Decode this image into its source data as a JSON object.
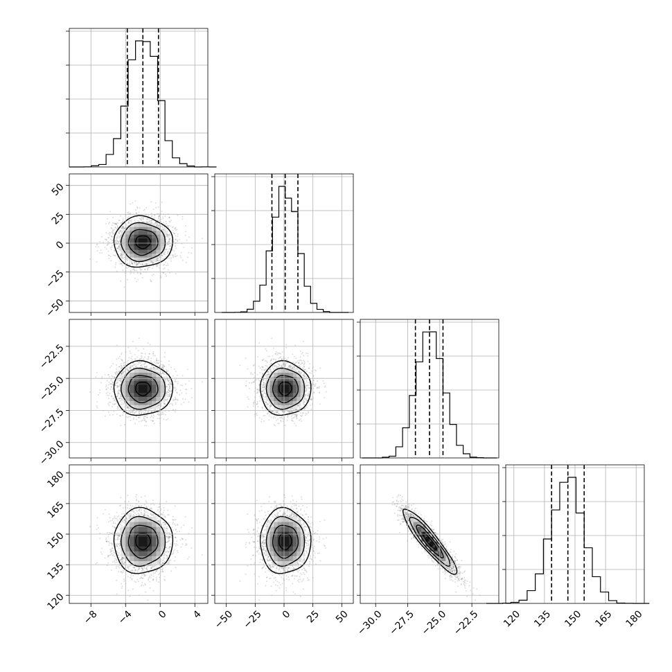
{
  "chart_data": {
    "type": "corner",
    "grid": true,
    "parameters": [
      {
        "mean": -2.0,
        "sd": 1.7,
        "q16": -3.8,
        "q50": -2.0,
        "q84": -0.2,
        "range": [
          -10.5,
          5.5
        ],
        "ticks": [
          -8,
          -4,
          0,
          4
        ],
        "tick_labels": [
          "−8",
          "−4",
          "0",
          "4"
        ]
      },
      {
        "mean": 1.0,
        "sd": 11.0,
        "q16": -10.5,
        "q50": 1.0,
        "q84": 12.0,
        "range": [
          -60,
          60
        ],
        "ticks": [
          -50,
          -25,
          0,
          25,
          50
        ],
        "tick_labels": [
          "−50",
          "−25",
          "0",
          "25",
          "50"
        ]
      },
      {
        "mean": -25.8,
        "sd": 1.05,
        "q16": -26.9,
        "q50": -25.8,
        "q84": -24.75,
        "range": [
          -31.2,
          -20.4
        ],
        "ticks": [
          -30.0,
          -27.5,
          -25.0,
          -22.5
        ],
        "tick_labels": [
          "−30.0",
          "−27.5",
          "−25.0",
          "−22.5"
        ]
      },
      {
        "mean": 146.5,
        "sd": 8.0,
        "q16": 138.5,
        "q50": 146.5,
        "q84": 154.5,
        "range": [
          116,
          184
        ],
        "ticks": [
          120,
          135,
          150,
          165,
          180
        ],
        "tick_labels": [
          "120",
          "135",
          "150",
          "165",
          "180"
        ]
      }
    ],
    "correlations": [
      {
        "i": 1,
        "j": 0,
        "rho": 0.0
      },
      {
        "i": 2,
        "j": 0,
        "rho": 0.0
      },
      {
        "i": 2,
        "j": 1,
        "rho": 0.0
      },
      {
        "i": 3,
        "j": 0,
        "rho": 0.0
      },
      {
        "i": 3,
        "j": 1,
        "rho": 0.0
      },
      {
        "i": 3,
        "j": 2,
        "rho": -0.92
      }
    ],
    "contour_levels_sigma": [
      0.5,
      1.0,
      1.5,
      2.0
    ],
    "histogram_bins": 20,
    "samples": 5000
  }
}
